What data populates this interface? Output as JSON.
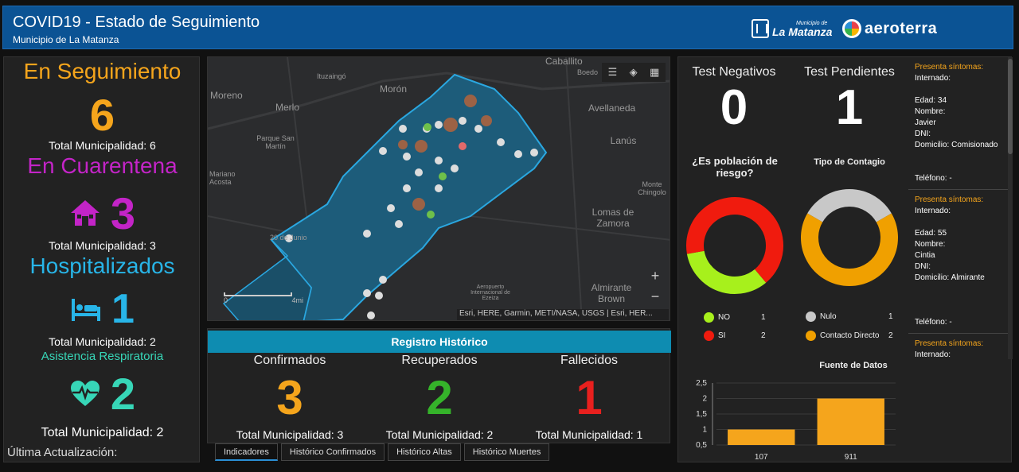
{
  "header": {
    "title": "COVID19 - Estado de Seguimiento",
    "subtitle": "Municipio de La Matanza",
    "logo_municipio_small": "Municipio de",
    "logo_municipio_big": "La Matanza",
    "logo_aeroterra": "aeroterra"
  },
  "left": {
    "seguimiento": {
      "title": "En Seguimiento",
      "value": "6",
      "total": "Total Municipalidad: 6"
    },
    "cuarentena": {
      "title": "En Cuarentena",
      "value": "3",
      "total": "Total Municipalidad: 3"
    },
    "hospitalizados": {
      "title": "Hospitalizados",
      "value": "1",
      "total": "Total Municipalidad: 2"
    },
    "asistencia": {
      "title": "Asistencia Respiratoria",
      "value": "2",
      "total": "Total Municipalidad: 2"
    },
    "ultima": "Última Actualización:",
    "colors": {
      "seguimiento": "#f5a51c",
      "cuarentena": "#c324c7",
      "hospitalizados": "#28b5e8",
      "asistencia": "#37d6b7"
    }
  },
  "map": {
    "places": [
      "Caballito",
      "Boedo",
      "Ituzaingó",
      "Morón",
      "Moreno",
      "Merlo",
      "Avellaneda",
      "Parque San Martín",
      "Lanús",
      "Mariano Acosta",
      "Monte Chingolo",
      "Lomas de Zamora",
      "20 de Junio",
      "Almirante Brown",
      "Aeropuerto Internacional de Ezeiza"
    ],
    "attribution": "Esri, HERE, Garmin, METI/NASA, USGS | Esri, HER...",
    "scale_start": "0",
    "scale_end": "4mi",
    "zoom_in": "+",
    "zoom_out": "−"
  },
  "historico": {
    "title": "Registro Histórico",
    "columns": [
      {
        "label": "Confirmados",
        "value": "3",
        "total": "Total Municipalidad: 3",
        "color": "#f5a51c"
      },
      {
        "label": "Recuperados",
        "value": "2",
        "total": "Total Municipalidad: 2",
        "color": "#35b32a"
      },
      {
        "label": "Fallecidos",
        "value": "1",
        "total": "Total Municipalidad: 1",
        "color": "#e8201e"
      }
    ]
  },
  "tabs": [
    "Indicadores",
    "Histórico Confirmados",
    "Histórico Altas",
    "Histórico Muertes"
  ],
  "right": {
    "negativos": {
      "label": "Test Negativos",
      "value": "0"
    },
    "pendientes": {
      "label": "Test Pendientes",
      "value": "1"
    },
    "riesgo": {
      "question": "¿Es población de riesgo?",
      "legend": [
        {
          "label": "NO",
          "count": "1",
          "color": "#a7f01c"
        },
        {
          "label": "SI",
          "count": "2",
          "color": "#f01b0e"
        }
      ]
    },
    "contagio": {
      "title": "Tipo de Contagio",
      "legend": [
        {
          "label": "Nulo",
          "count": "1",
          "color": "#c8c8c8"
        },
        {
          "label": "Contacto Directo",
          "count": "2",
          "color": "#f0a000"
        }
      ]
    },
    "fuente": "Fuente de Datos",
    "entries": [
      {
        "sintomas": "Presenta síntomas:",
        "internado": "Internado:",
        "edad": "Edad: 34",
        "nombre": "Nombre:",
        "nombre_val": "Javier",
        "dni": "DNI: ",
        "domicilio": "Domicilio: Comisionado",
        "telefono": "Teléfono: -"
      },
      {
        "sintomas": "Presenta síntomas:",
        "internado": "Internado:",
        "edad": "Edad: 55",
        "nombre": "Nombre:",
        "nombre_val": "Cintia",
        "dni": "DNI:",
        "domicilio": "Domicilio: Almirante",
        "telefono": "Teléfono: -"
      },
      {
        "sintomas": "Presenta síntomas:",
        "internado": "Internado:"
      }
    ]
  },
  "chart_data": [
    {
      "type": "pie",
      "title": "¿Es población de riesgo?",
      "categories": [
        "NO",
        "SI"
      ],
      "values": [
        1,
        2
      ],
      "colors": [
        "#a7f01c",
        "#f01b0e"
      ]
    },
    {
      "type": "pie",
      "title": "Tipo de Contagio",
      "categories": [
        "Nulo",
        "Contacto Directo"
      ],
      "values": [
        1,
        2
      ],
      "colors": [
        "#c8c8c8",
        "#f0a000"
      ]
    },
    {
      "type": "bar",
      "title": "Fuente de Datos",
      "categories": [
        "107",
        "911"
      ],
      "values": [
        1,
        2
      ],
      "ylim": [
        0.5,
        2.5
      ],
      "yticks": [
        "2,5",
        "2",
        "1,5",
        "1",
        "0,5"
      ],
      "color": "#f5a51c"
    }
  ]
}
